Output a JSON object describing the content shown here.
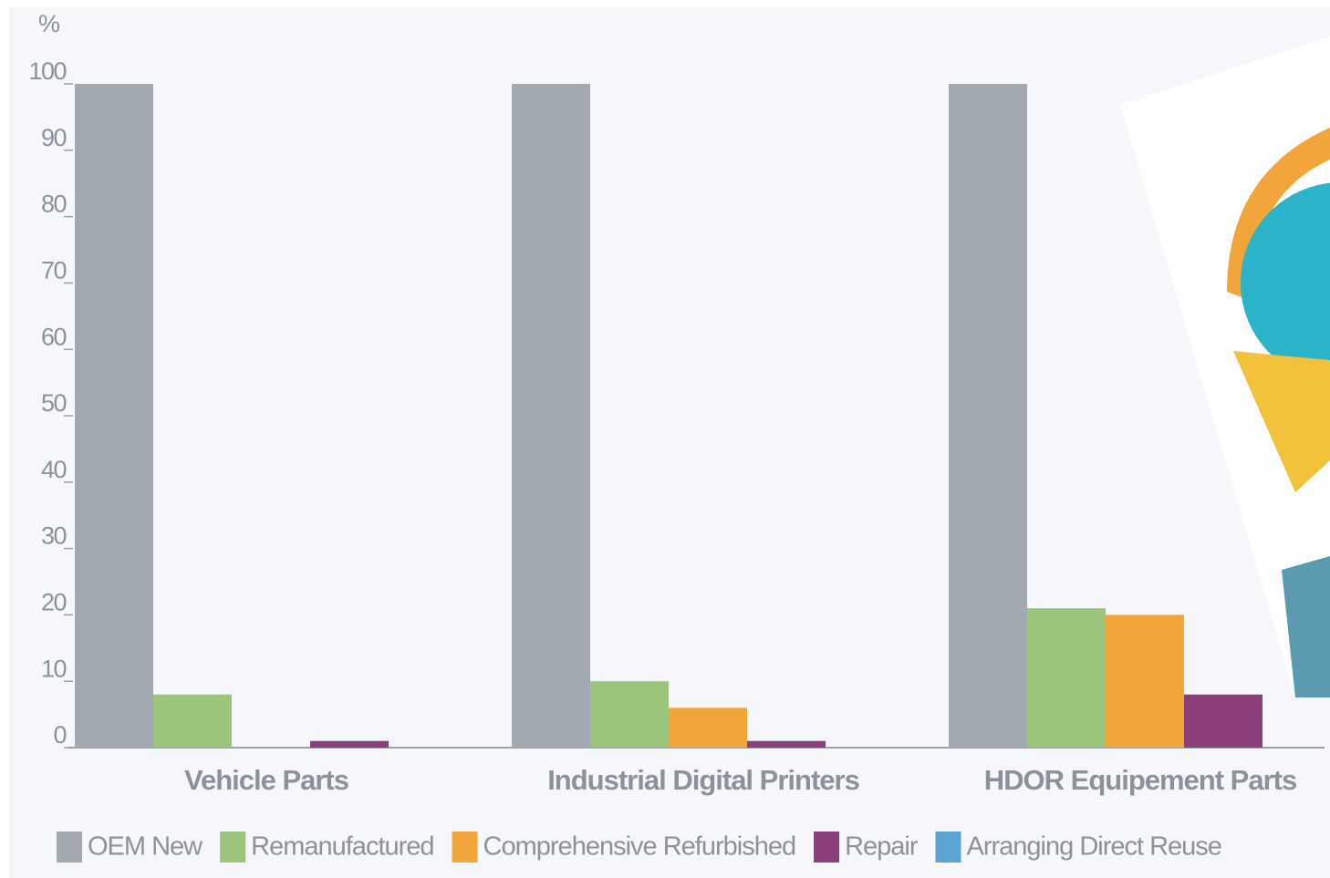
{
  "chart_data": {
    "type": "bar",
    "y_label": "%",
    "categories": [
      "Vehicle Parts",
      "Industrial Digital Printers",
      "HDOR Equipement Parts"
    ],
    "series": [
      {
        "name": "OEM New",
        "color": "#a3a9b0",
        "values": [
          100,
          100,
          100
        ]
      },
      {
        "name": "Remanufactured",
        "color": "#9dc47b",
        "values": [
          8,
          10,
          21
        ]
      },
      {
        "name": "Comprehensive Refurbished",
        "color": "#f2a53a",
        "values": [
          0,
          6,
          20
        ]
      },
      {
        "name": "Repair",
        "color": "#8a3f7a",
        "values": [
          1,
          1,
          8
        ]
      },
      {
        "name": "Arranging Direct Reuse",
        "color": "#5aa5d6",
        "values": [
          0,
          0,
          0
        ]
      }
    ],
    "ylim": [
      0,
      100
    ],
    "yticks": [
      0,
      10,
      20,
      30,
      40,
      50,
      60,
      70,
      80,
      90,
      100
    ]
  }
}
